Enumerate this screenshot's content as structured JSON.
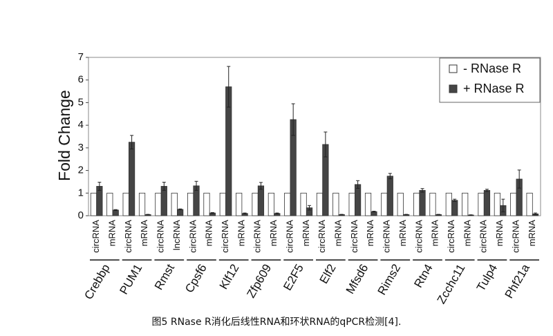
{
  "chart_data": {
    "type": "bar",
    "ylabel": "Fold Change",
    "caption": "图5 RNase R消化后线性RNA和环状RNA的qPCR检测[4].",
    "categories": [
      "circRNA",
      "mRNA",
      "circRNA",
      "mRNA",
      "circRNA",
      "lncRNA",
      "circRNA",
      "mRNA",
      "circRNA",
      "mRNA",
      "circRNA",
      "mRNA",
      "circRNA",
      "mRNA",
      "circRNA",
      "mRNA",
      "circRNA",
      "mRNA",
      "circRNA",
      "mRNA",
      "circRNA",
      "mRNA",
      "circRNA",
      "mRNA",
      "circRNA",
      "mRNA",
      "circRNA",
      "mRNA"
    ],
    "groups": [
      "Crebbp",
      "PUM1",
      "Rmst",
      "Cpsf6",
      "Klf12",
      "Zfp609",
      "E2F5",
      "Elf2",
      "Mfsd6",
      "Rims2",
      "Rtn4",
      "Zcchc11",
      "Tulp4",
      "Phf21a"
    ],
    "series": [
      {
        "name": "- RNase R",
        "color": "#ffffff",
        "values": [
          1,
          1,
          1,
          1,
          1,
          1,
          1,
          1,
          1,
          1,
          1,
          1,
          1,
          1,
          1,
          1,
          1,
          1,
          1,
          1,
          1,
          1,
          1,
          1,
          1,
          1,
          1,
          1
        ]
      },
      {
        "name": "+ RNase R",
        "color": "#454545",
        "values": [
          1.3,
          0.25,
          3.25,
          0.05,
          1.3,
          0.28,
          1.32,
          0.12,
          5.7,
          0.1,
          1.32,
          0.1,
          4.25,
          0.35,
          3.15,
          0.05,
          1.38,
          0.18,
          1.75,
          0.05,
          1.12,
          0.05,
          0.68,
          0.03,
          1.12,
          0.45,
          1.62,
          0.08
        ],
        "errors": [
          0.18,
          0.02,
          0.3,
          0.01,
          0.18,
          0.02,
          0.2,
          0.02,
          0.9,
          0.02,
          0.15,
          0.02,
          0.7,
          0.1,
          0.55,
          0.01,
          0.17,
          0.02,
          0.12,
          0.01,
          0.08,
          0.01,
          0.05,
          0.01,
          0.05,
          0.28,
          0.4,
          0.04
        ]
      }
    ],
    "ylim": [
      0,
      7
    ],
    "yticks": [
      0,
      1,
      2,
      3,
      4,
      5,
      6,
      7
    ],
    "legend": "top-right"
  }
}
